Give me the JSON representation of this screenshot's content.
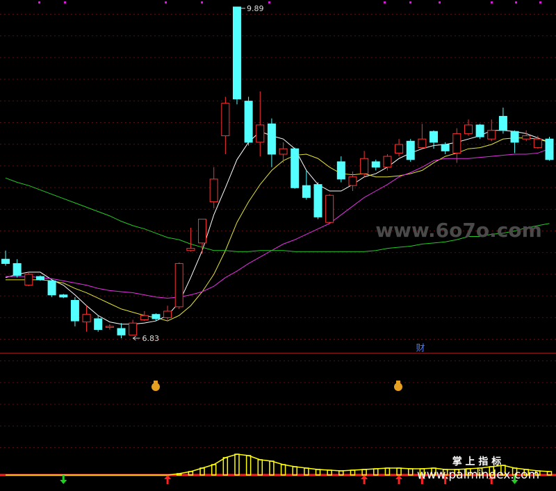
{
  "chart_data": {
    "type": "candlestick",
    "open": [
      7.56,
      7.52,
      7.32,
      7.4,
      7.36,
      7.23,
      7.18,
      6.98,
      7.01,
      6.93,
      6.92,
      6.86,
      7.0,
      7.05,
      7.02,
      7.12,
      7.64,
      7.71,
      8.09,
      8.7,
      9.89,
      9.02,
      8.64,
      8.81,
      8.53,
      8.58,
      8.24,
      8.25,
      7.9,
      8.46,
      8.24,
      8.35,
      8.46,
      8.41,
      8.54,
      8.65,
      8.59,
      8.74,
      8.62,
      8.54,
      8.72,
      8.8,
      8.67,
      8.88,
      8.74,
      8.67,
      8.59,
      8.67
    ],
    "high": [
      7.64,
      7.56,
      7.44,
      7.41,
      7.37,
      7.24,
      7.21,
      7.13,
      7.04,
      6.96,
      6.97,
      7.0,
      7.08,
      7.06,
      7.13,
      7.53,
      7.85,
      7.93,
      8.41,
      9.06,
      9.89,
      9.06,
      9.11,
      8.86,
      8.64,
      8.59,
      8.38,
      8.27,
      8.16,
      8.51,
      8.37,
      8.56,
      8.48,
      8.53,
      8.67,
      8.67,
      8.81,
      8.75,
      8.64,
      8.77,
      8.85,
      8.81,
      8.85,
      8.96,
      8.75,
      8.75,
      8.7,
      8.69
    ],
    "low": [
      7.5,
      7.39,
      7.31,
      7.36,
      7.21,
      7.2,
      6.94,
      6.89,
      6.89,
      6.91,
      6.83,
      6.86,
      6.99,
      6.99,
      7.0,
      7.1,
      7.63,
      7.61,
      8.03,
      8.53,
      8.99,
      8.61,
      8.51,
      8.41,
      8.45,
      8.21,
      8.11,
      7.93,
      7.89,
      8.27,
      8.19,
      8.32,
      8.38,
      8.38,
      8.51,
      8.46,
      8.58,
      8.58,
      8.53,
      8.45,
      8.7,
      8.67,
      8.65,
      8.72,
      8.54,
      8.65,
      8.58,
      8.47
    ],
    "close": [
      7.52,
      7.41,
      7.42,
      7.37,
      7.23,
      7.21,
      6.99,
      7.05,
      6.91,
      6.94,
      6.86,
      6.97,
      7.04,
      7.01,
      7.08,
      7.52,
      7.66,
      7.93,
      8.3,
      9.0,
      9.04,
      8.64,
      8.8,
      8.53,
      8.58,
      8.22,
      8.13,
      7.95,
      8.15,
      8.3,
      8.32,
      8.49,
      8.41,
      8.51,
      8.62,
      8.48,
      8.67,
      8.64,
      8.56,
      8.72,
      8.8,
      8.69,
      8.75,
      8.75,
      8.64,
      8.7,
      8.67,
      8.48
    ],
    "up_color": "#ff3232",
    "down_color": "#54ffff",
    "series": [
      {
        "color": "#ffffff",
        "values": [
          7.39,
          7.42,
          7.44,
          7.44,
          7.37,
          7.32,
          7.23,
          7.13,
          7.04,
          6.98,
          6.96,
          6.96,
          6.97,
          6.99,
          7.04,
          7.16,
          7.39,
          7.64,
          7.97,
          8.22,
          8.48,
          8.64,
          8.74,
          8.7,
          8.67,
          8.58,
          8.38,
          8.25,
          8.19,
          8.19,
          8.25,
          8.32,
          8.35,
          8.41,
          8.49,
          8.54,
          8.58,
          8.61,
          8.62,
          8.64,
          8.67,
          8.7,
          8.75,
          8.75,
          8.74,
          8.72,
          8.68,
          8.64
        ]
      },
      {
        "color": "#e6e632",
        "values": [
          7.37,
          7.37,
          7.37,
          7.37,
          7.36,
          7.34,
          7.29,
          7.25,
          7.2,
          7.15,
          7.1,
          7.07,
          7.04,
          7.02,
          6.99,
          7.04,
          7.13,
          7.26,
          7.42,
          7.64,
          7.9,
          8.09,
          8.25,
          8.38,
          8.47,
          8.52,
          8.53,
          8.49,
          8.41,
          8.35,
          8.34,
          8.35,
          8.32,
          8.32,
          8.33,
          8.35,
          8.38,
          8.45,
          8.51,
          8.54,
          8.58,
          8.59,
          8.62,
          8.67,
          8.68,
          8.68,
          8.67,
          8.64
        ]
      },
      {
        "color": "#e632e6",
        "values": [
          7.4,
          7.4,
          7.4,
          7.39,
          7.38,
          7.36,
          7.34,
          7.32,
          7.29,
          7.27,
          7.26,
          7.25,
          7.23,
          7.21,
          7.2,
          7.21,
          7.23,
          7.26,
          7.31,
          7.39,
          7.45,
          7.52,
          7.58,
          7.64,
          7.7,
          7.74,
          7.79,
          7.84,
          7.89,
          7.97,
          8.05,
          8.13,
          8.19,
          8.25,
          8.32,
          8.36,
          8.41,
          8.47,
          8.49,
          8.49,
          8.49,
          8.5,
          8.51,
          8.52,
          8.53,
          8.53,
          8.54,
          8.58
        ]
      },
      {
        "color": "#22cc22",
        "values": [
          8.31,
          8.27,
          8.24,
          8.2,
          8.16,
          8.12,
          8.08,
          8.04,
          8.0,
          7.96,
          7.91,
          7.87,
          7.84,
          7.8,
          7.76,
          7.74,
          7.7,
          7.67,
          7.64,
          7.64,
          7.63,
          7.63,
          7.64,
          7.64,
          7.64,
          7.63,
          7.63,
          7.63,
          7.63,
          7.63,
          7.63,
          7.63,
          7.64,
          7.66,
          7.67,
          7.68,
          7.7,
          7.71,
          7.72,
          7.74,
          7.77,
          7.77,
          7.79,
          7.8,
          7.82,
          7.85,
          7.87,
          7.89
        ]
      }
    ],
    "indicator": {
      "color": "#ffff00",
      "values": [
        0,
        0,
        0,
        0,
        0,
        0,
        0,
        0,
        0,
        0,
        0,
        0,
        0,
        0,
        0,
        2,
        5,
        10,
        15,
        25,
        30,
        28,
        22,
        20,
        15,
        12,
        10,
        8,
        7,
        6,
        7,
        8,
        9,
        10,
        10,
        9,
        9,
        10,
        8,
        8,
        9,
        10,
        12,
        14,
        10,
        8,
        6,
        5
      ]
    },
    "signals": [
      null,
      null,
      null,
      null,
      null,
      "down",
      null,
      null,
      null,
      null,
      null,
      null,
      null,
      null,
      "up",
      null,
      null,
      null,
      null,
      null,
      null,
      null,
      null,
      null,
      null,
      null,
      null,
      null,
      null,
      null,
      null,
      "up",
      null,
      null,
      "up",
      null,
      "up",
      null,
      "up",
      null,
      null,
      null,
      "up",
      null,
      "down",
      null,
      null,
      null
    ],
    "finance_marker": "财",
    "watermarks": [
      "www.6o7o.com",
      "掌 上 指 标",
      "www.palmindex.com"
    ]
  }
}
